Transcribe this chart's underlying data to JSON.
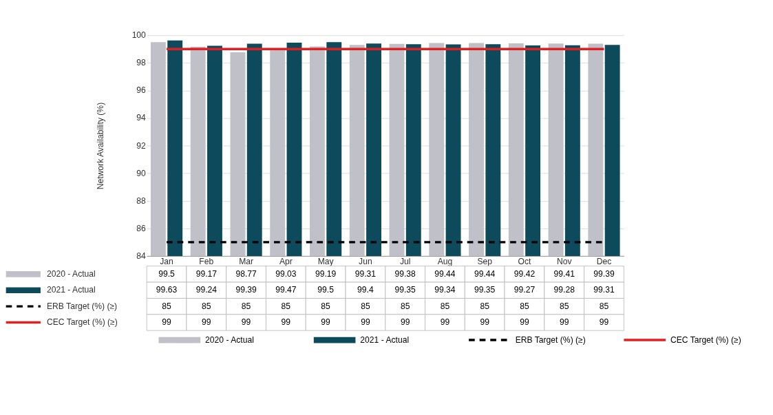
{
  "chart_data": {
    "type": "bar",
    "ylabel": "Network Availability (%)",
    "categories": [
      "Jan",
      "Feb",
      "Mar",
      "Apr",
      "May",
      "Jun",
      "Jul",
      "Aug",
      "Sep",
      "Oct",
      "Nov",
      "Dec"
    ],
    "series": [
      {
        "name": "2020 - Actual",
        "color": "#c0c0c8",
        "values": [
          99.5,
          99.17,
          98.77,
          99.03,
          99.19,
          99.31,
          99.38,
          99.44,
          99.44,
          99.42,
          99.41,
          99.39
        ]
      },
      {
        "name": "2021 - Actual",
        "color": "#0d4b5c",
        "values": [
          99.63,
          99.24,
          99.39,
          99.47,
          99.5,
          99.4,
          99.35,
          99.34,
          99.35,
          99.27,
          99.28,
          99.31
        ]
      },
      {
        "name": "ERB Target (%) (≥)",
        "type": "line",
        "line_style": "dashed",
        "color": "#000000",
        "values": [
          85,
          85,
          85,
          85,
          85,
          85,
          85,
          85,
          85,
          85,
          85,
          85
        ]
      },
      {
        "name": "CEC Target (%) (≥)",
        "type": "line",
        "line_style": "solid",
        "color": "#e02020",
        "values": [
          99,
          99,
          99,
          99,
          99,
          99,
          99,
          99,
          99,
          99,
          99,
          99
        ]
      }
    ],
    "ylim": [
      84,
      100
    ],
    "yticks": [
      84,
      86,
      88,
      90,
      92,
      94,
      96,
      98,
      100
    ],
    "grid": "y",
    "legend": "bottom",
    "data_labels": true,
    "marker": "none"
  }
}
